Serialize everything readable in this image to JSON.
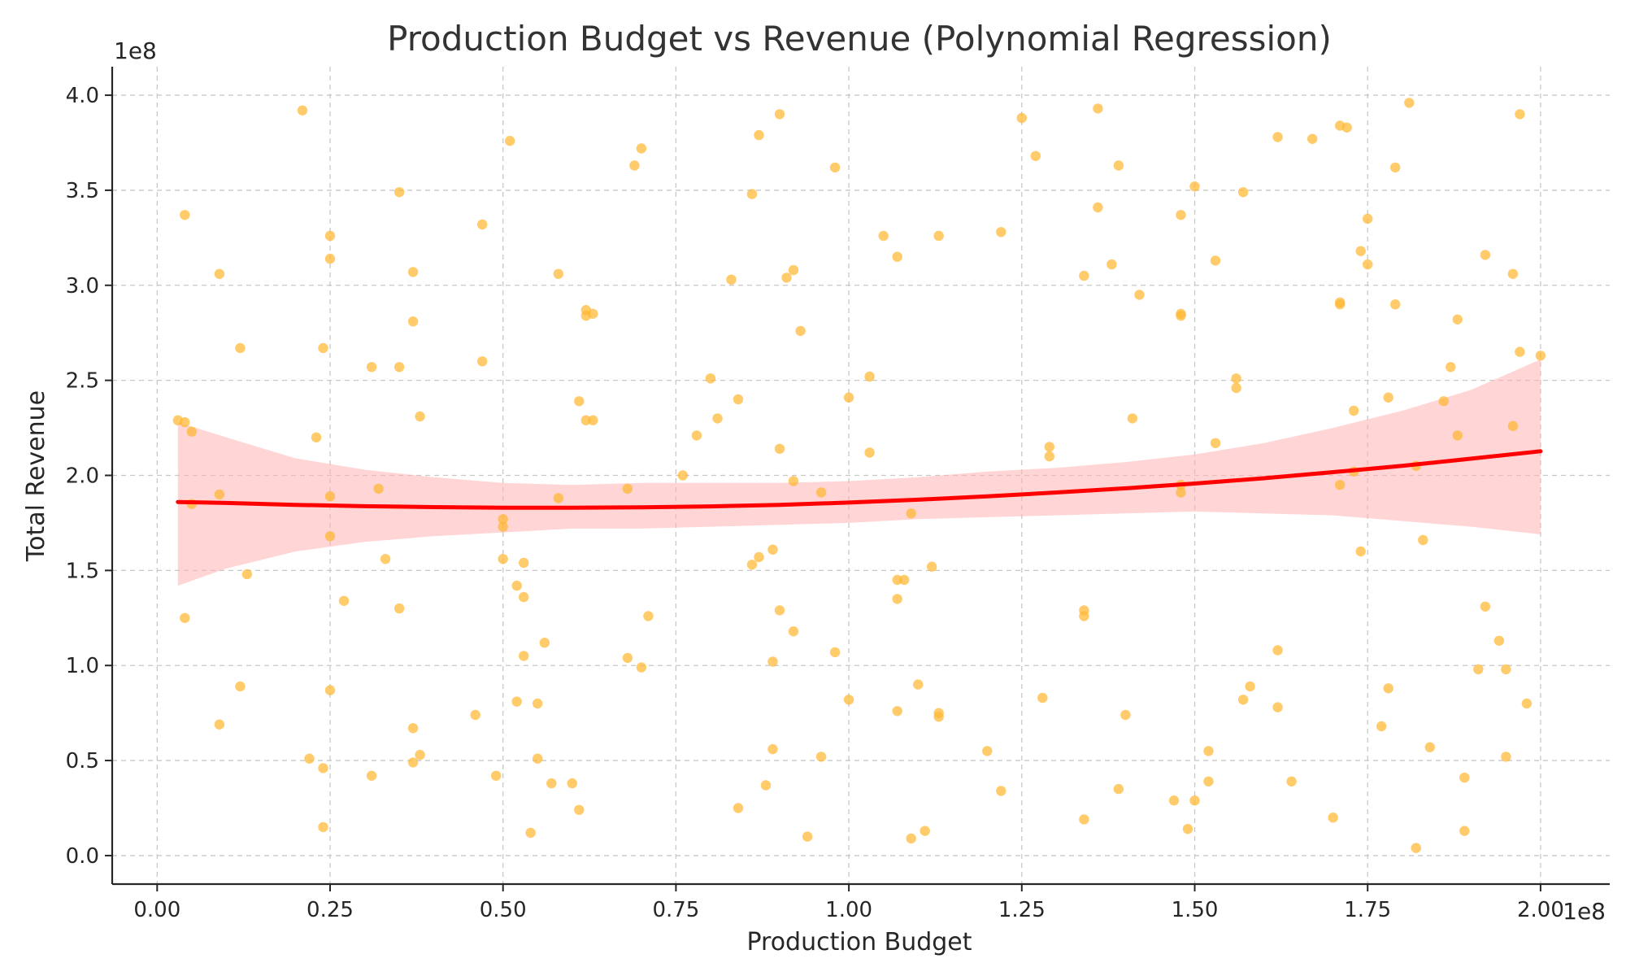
{
  "chart_data": {
    "type": "scatter",
    "title": "Production Budget vs Revenue (Polynomial Regression)",
    "xlabel": "Production Budget",
    "ylabel": "Total Revenue",
    "x_offset_label": "1e8",
    "y_offset_label": "1e8",
    "xlim": [
      -0.065,
      2.1
    ],
    "ylim": [
      -0.15,
      4.15
    ],
    "x_ticks": [
      0.0,
      0.25,
      0.5,
      0.75,
      1.0,
      1.25,
      1.5,
      1.75,
      2.0
    ],
    "x_tick_labels": [
      "0.00",
      "0.25",
      "0.50",
      "0.75",
      "1.00",
      "1.25",
      "1.50",
      "1.75",
      "2.00"
    ],
    "y_ticks": [
      0.0,
      0.5,
      1.0,
      1.5,
      2.0,
      2.5,
      3.0,
      3.5,
      4.0
    ],
    "y_tick_labels": [
      "0.0",
      "0.5",
      "1.0",
      "1.5",
      "2.0",
      "2.5",
      "3.0",
      "3.5",
      "4.0"
    ],
    "grid": true,
    "scatter_color": "#FFB732",
    "fit_color": "#FF0000",
    "band_color": "#FFB3B3",
    "points": [
      [
        0.03,
        2.29
      ],
      [
        0.04,
        2.28
      ],
      [
        0.04,
        3.37
      ],
      [
        0.04,
        1.25
      ],
      [
        0.05,
        2.23
      ],
      [
        0.05,
        1.85
      ],
      [
        0.09,
        1.9
      ],
      [
        0.09,
        0.69
      ],
      [
        0.09,
        3.06
      ],
      [
        0.12,
        2.67
      ],
      [
        0.12,
        0.89
      ],
      [
        0.13,
        1.48
      ],
      [
        0.21,
        3.92
      ],
      [
        0.22,
        0.51
      ],
      [
        0.23,
        2.2
      ],
      [
        0.24,
        2.67
      ],
      [
        0.24,
        0.46
      ],
      [
        0.24,
        0.15
      ],
      [
        0.25,
        1.89
      ],
      [
        0.25,
        3.14
      ],
      [
        0.25,
        3.26
      ],
      [
        0.25,
        1.68
      ],
      [
        0.25,
        0.87
      ],
      [
        0.27,
        1.34
      ],
      [
        0.31,
        2.57
      ],
      [
        0.31,
        0.42
      ],
      [
        0.32,
        1.93
      ],
      [
        0.33,
        1.56
      ],
      [
        0.35,
        2.57
      ],
      [
        0.35,
        3.49
      ],
      [
        0.35,
        1.3
      ],
      [
        0.37,
        2.81
      ],
      [
        0.37,
        3.07
      ],
      [
        0.37,
        0.67
      ],
      [
        0.37,
        0.49
      ],
      [
        0.38,
        2.31
      ],
      [
        0.38,
        0.53
      ],
      [
        0.46,
        0.74
      ],
      [
        0.47,
        3.32
      ],
      [
        0.47,
        2.6
      ],
      [
        0.49,
        0.42
      ],
      [
        0.5,
        1.77
      ],
      [
        0.5,
        1.73
      ],
      [
        0.5,
        1.56
      ],
      [
        0.51,
        3.76
      ],
      [
        0.52,
        1.42
      ],
      [
        0.52,
        0.81
      ],
      [
        0.53,
        1.54
      ],
      [
        0.53,
        1.05
      ],
      [
        0.53,
        1.36
      ],
      [
        0.54,
        0.12
      ],
      [
        0.55,
        0.8
      ],
      [
        0.55,
        0.51
      ],
      [
        0.56,
        1.12
      ],
      [
        0.57,
        0.38
      ],
      [
        0.58,
        1.88
      ],
      [
        0.58,
        3.06
      ],
      [
        0.6,
        0.38
      ],
      [
        0.61,
        2.39
      ],
      [
        0.61,
        0.24
      ],
      [
        0.62,
        2.87
      ],
      [
        0.62,
        2.84
      ],
      [
        0.62,
        2.29
      ],
      [
        0.63,
        2.85
      ],
      [
        0.63,
        2.29
      ],
      [
        0.68,
        1.93
      ],
      [
        0.68,
        1.04
      ],
      [
        0.69,
        3.63
      ],
      [
        0.7,
        3.72
      ],
      [
        0.7,
        0.99
      ],
      [
        0.71,
        1.26
      ],
      [
        0.76,
        2.0
      ],
      [
        0.78,
        2.21
      ],
      [
        0.8,
        2.51
      ],
      [
        0.81,
        2.3
      ],
      [
        0.83,
        3.03
      ],
      [
        0.84,
        2.4
      ],
      [
        0.84,
        0.25
      ],
      [
        0.86,
        3.48
      ],
      [
        0.86,
        1.53
      ],
      [
        0.87,
        1.57
      ],
      [
        0.87,
        3.79
      ],
      [
        0.88,
        0.37
      ],
      [
        0.89,
        0.56
      ],
      [
        0.89,
        1.02
      ],
      [
        0.89,
        1.61
      ],
      [
        0.9,
        2.14
      ],
      [
        0.9,
        1.29
      ],
      [
        0.9,
        3.9
      ],
      [
        0.91,
        3.04
      ],
      [
        0.92,
        1.97
      ],
      [
        0.92,
        3.08
      ],
      [
        0.92,
        1.18
      ],
      [
        0.93,
        2.76
      ],
      [
        0.94,
        0.1
      ],
      [
        0.96,
        0.52
      ],
      [
        0.96,
        1.91
      ],
      [
        0.98,
        3.62
      ],
      [
        0.98,
        1.07
      ],
      [
        1.0,
        2.41
      ],
      [
        1.0,
        0.82
      ],
      [
        1.03,
        2.52
      ],
      [
        1.03,
        2.12
      ],
      [
        1.05,
        3.26
      ],
      [
        1.07,
        3.15
      ],
      [
        1.07,
        1.45
      ],
      [
        1.07,
        1.35
      ],
      [
        1.07,
        0.76
      ],
      [
        1.08,
        1.45
      ],
      [
        1.09,
        1.8
      ],
      [
        1.09,
        0.09
      ],
      [
        1.1,
        0.9
      ],
      [
        1.11,
        0.13
      ],
      [
        1.12,
        1.52
      ],
      [
        1.13,
        3.26
      ],
      [
        1.13,
        0.75
      ],
      [
        1.13,
        0.73
      ],
      [
        1.2,
        0.55
      ],
      [
        1.22,
        3.28
      ],
      [
        1.22,
        0.34
      ],
      [
        1.25,
        3.88
      ],
      [
        1.27,
        3.68
      ],
      [
        1.28,
        0.83
      ],
      [
        1.29,
        2.15
      ],
      [
        1.29,
        2.1
      ],
      [
        1.34,
        3.05
      ],
      [
        1.34,
        1.29
      ],
      [
        1.34,
        1.26
      ],
      [
        1.34,
        0.19
      ],
      [
        1.36,
        3.93
      ],
      [
        1.36,
        3.41
      ],
      [
        1.38,
        3.11
      ],
      [
        1.39,
        3.63
      ],
      [
        1.39,
        0.35
      ],
      [
        1.4,
        0.74
      ],
      [
        1.41,
        2.3
      ],
      [
        1.42,
        2.95
      ],
      [
        1.48,
        3.37
      ],
      [
        1.48,
        2.85
      ],
      [
        1.48,
        2.84
      ],
      [
        1.48,
        1.91
      ],
      [
        1.48,
        1.95
      ],
      [
        1.47,
        0.29
      ],
      [
        1.49,
        0.14
      ],
      [
        1.5,
        3.52
      ],
      [
        1.5,
        0.29
      ],
      [
        1.52,
        0.55
      ],
      [
        1.52,
        0.39
      ],
      [
        1.53,
        3.13
      ],
      [
        1.53,
        2.17
      ],
      [
        1.56,
        2.51
      ],
      [
        1.56,
        2.46
      ],
      [
        1.57,
        3.49
      ],
      [
        1.57,
        0.82
      ],
      [
        1.58,
        0.89
      ],
      [
        1.62,
        3.78
      ],
      [
        1.62,
        1.08
      ],
      [
        1.62,
        0.78
      ],
      [
        1.64,
        0.39
      ],
      [
        1.67,
        3.77
      ],
      [
        1.7,
        0.2
      ],
      [
        1.71,
        3.84
      ],
      [
        1.71,
        2.91
      ],
      [
        1.71,
        2.9
      ],
      [
        1.72,
        3.83
      ],
      [
        1.71,
        1.95
      ],
      [
        1.73,
        2.34
      ],
      [
        1.73,
        2.02
      ],
      [
        1.74,
        3.18
      ],
      [
        1.74,
        1.6
      ],
      [
        1.75,
        3.35
      ],
      [
        1.75,
        3.11
      ],
      [
        1.77,
        0.68
      ],
      [
        1.78,
        2.41
      ],
      [
        1.78,
        0.88
      ],
      [
        1.79,
        3.62
      ],
      [
        1.79,
        2.9
      ],
      [
        1.81,
        3.96
      ],
      [
        1.82,
        2.05
      ],
      [
        1.82,
        0.04
      ],
      [
        1.83,
        1.66
      ],
      [
        1.84,
        0.57
      ],
      [
        1.86,
        2.39
      ],
      [
        1.87,
        2.57
      ],
      [
        1.88,
        2.82
      ],
      [
        1.88,
        2.21
      ],
      [
        1.89,
        0.41
      ],
      [
        1.89,
        0.13
      ],
      [
        1.91,
        0.98
      ],
      [
        1.92,
        3.16
      ],
      [
        1.92,
        1.31
      ],
      [
        1.94,
        1.13
      ],
      [
        1.95,
        0.98
      ],
      [
        1.95,
        0.52
      ],
      [
        1.96,
        2.26
      ],
      [
        1.96,
        3.06
      ],
      [
        1.97,
        2.65
      ],
      [
        1.97,
        3.9
      ],
      [
        1.98,
        0.8
      ],
      [
        2.0,
        2.63
      ]
    ],
    "fit": {
      "x": [
        0.03,
        0.1,
        0.2,
        0.3,
        0.4,
        0.5,
        0.6,
        0.7,
        0.8,
        0.9,
        1.0,
        1.1,
        1.2,
        1.3,
        1.4,
        1.5,
        1.6,
        1.7,
        1.8,
        1.9,
        2.0
      ],
      "y": [
        1.86,
        1.855,
        1.845,
        1.838,
        1.833,
        1.83,
        1.83,
        1.832,
        1.837,
        1.845,
        1.857,
        1.872,
        1.89,
        1.91,
        1.932,
        1.957,
        1.985,
        2.017,
        2.05,
        2.088,
        2.127
      ],
      "lower": [
        1.42,
        1.51,
        1.6,
        1.65,
        1.68,
        1.7,
        1.72,
        1.72,
        1.73,
        1.74,
        1.75,
        1.77,
        1.78,
        1.79,
        1.8,
        1.81,
        1.8,
        1.79,
        1.76,
        1.73,
        1.69
      ],
      "upper": [
        2.28,
        2.2,
        2.09,
        2.03,
        1.99,
        1.96,
        1.95,
        1.96,
        1.96,
        1.96,
        1.97,
        1.99,
        2.02,
        2.04,
        2.07,
        2.11,
        2.17,
        2.25,
        2.34,
        2.45,
        2.61
      ]
    }
  }
}
